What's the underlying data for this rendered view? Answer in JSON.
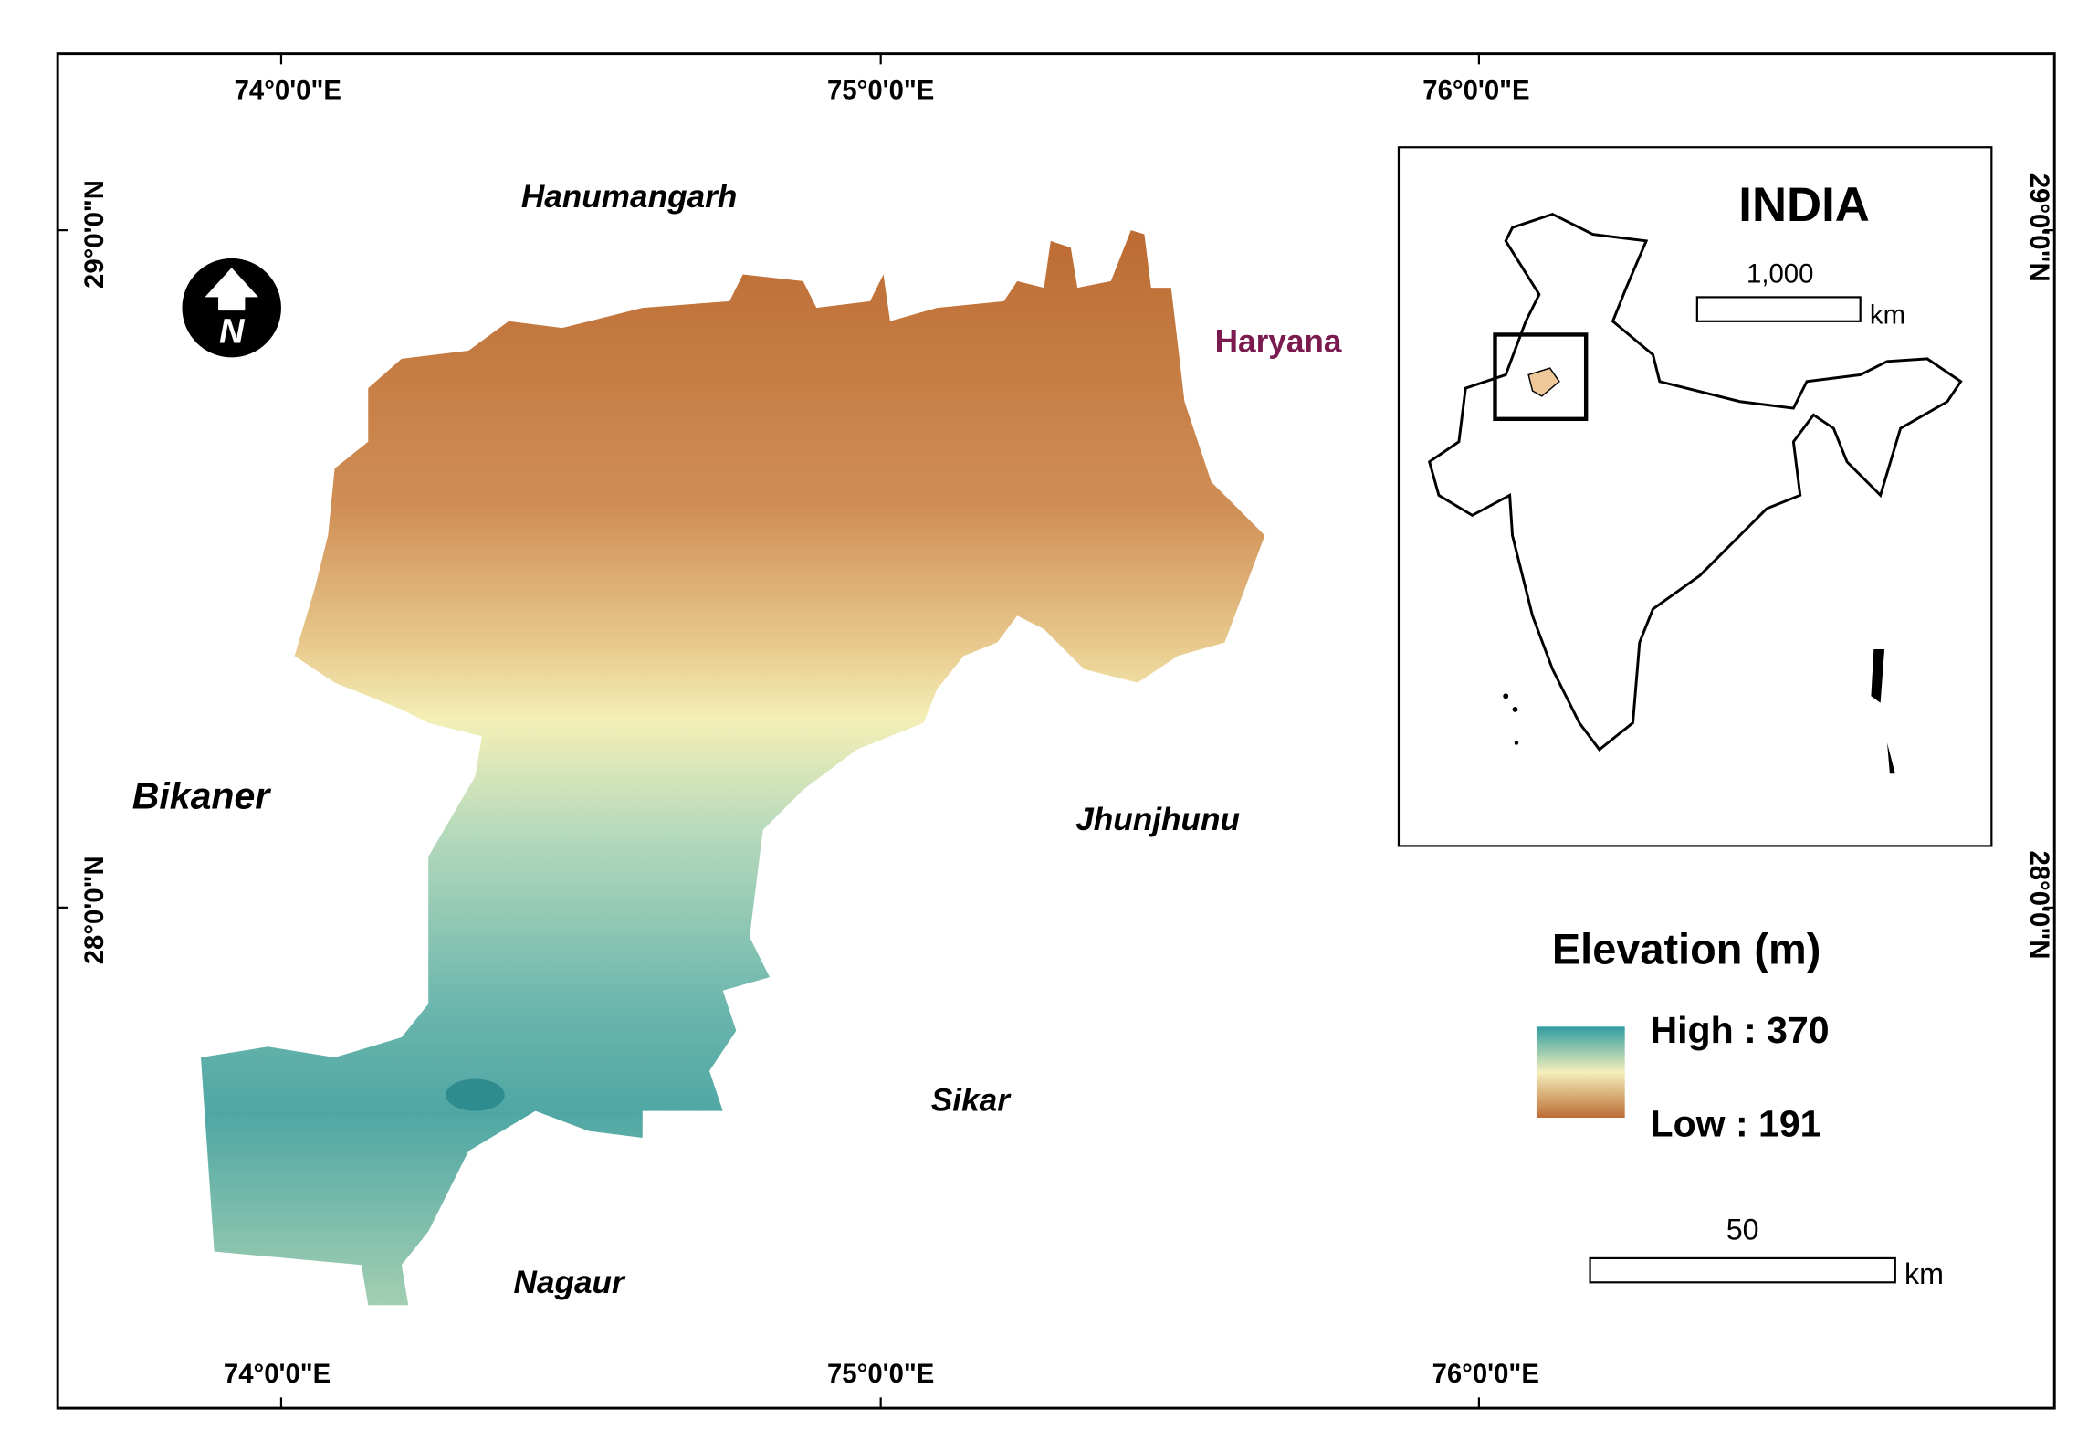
{
  "graticule": {
    "top": [
      "74°0'0\"E",
      "75°0'0\"E",
      "76°0'0\"E"
    ],
    "bottom": [
      "74°0'0\"E",
      "75°0'0\"E",
      "76°0'0\"E"
    ],
    "left": [
      "29°0'0\"N",
      "28°0'0\"N"
    ],
    "right": [
      "29°0'0\"N",
      "28°0'0\"N"
    ]
  },
  "places": {
    "hanumangarh": "Hanumangarh",
    "haryana": "Haryana",
    "bikaner": "Bikaner",
    "jhunjhunu": "Jhunjhunu",
    "sikar": "Sikar",
    "nagaur": "Nagaur"
  },
  "north_arrow": "N",
  "inset": {
    "title": "INDIA",
    "scale_value": "1,000",
    "scale_unit": "km"
  },
  "legend": {
    "title": "Elevation (m)",
    "high": "High : 370",
    "low": "Low : 191"
  },
  "scale_bar": {
    "value": "50",
    "unit": "km"
  }
}
